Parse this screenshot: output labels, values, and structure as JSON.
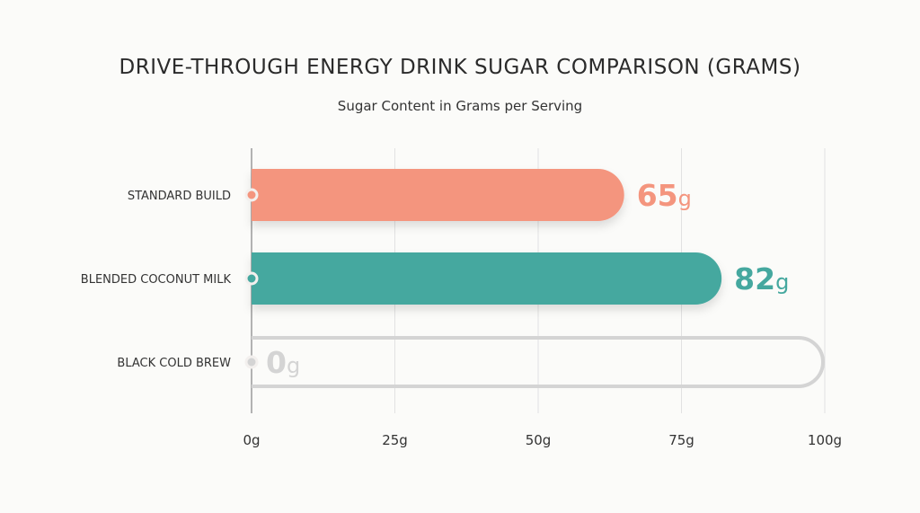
{
  "chart_data": {
    "type": "bar",
    "orientation": "horizontal",
    "title": "DRIVE-THROUGH ENERGY DRINK SUGAR COMPARISON (GRAMS)",
    "subtitle": "Sugar Content in Grams per Serving",
    "categories": [
      "STANDARD BUILD",
      "BLENDED COCONUT MILK",
      "BLACK COLD BREW"
    ],
    "values": [
      65,
      82,
      0
    ],
    "value_labels": [
      "65",
      "82",
      "0"
    ],
    "unit": "g",
    "colors": [
      "#F4957E",
      "#45A89F",
      "#D4D4D4"
    ],
    "xlim": [
      0,
      100
    ],
    "x_ticks": [
      0,
      25,
      50,
      75,
      100
    ],
    "x_tick_labels": [
      "0g",
      "25g",
      "50g",
      "75g",
      "100g"
    ],
    "grid": true
  }
}
